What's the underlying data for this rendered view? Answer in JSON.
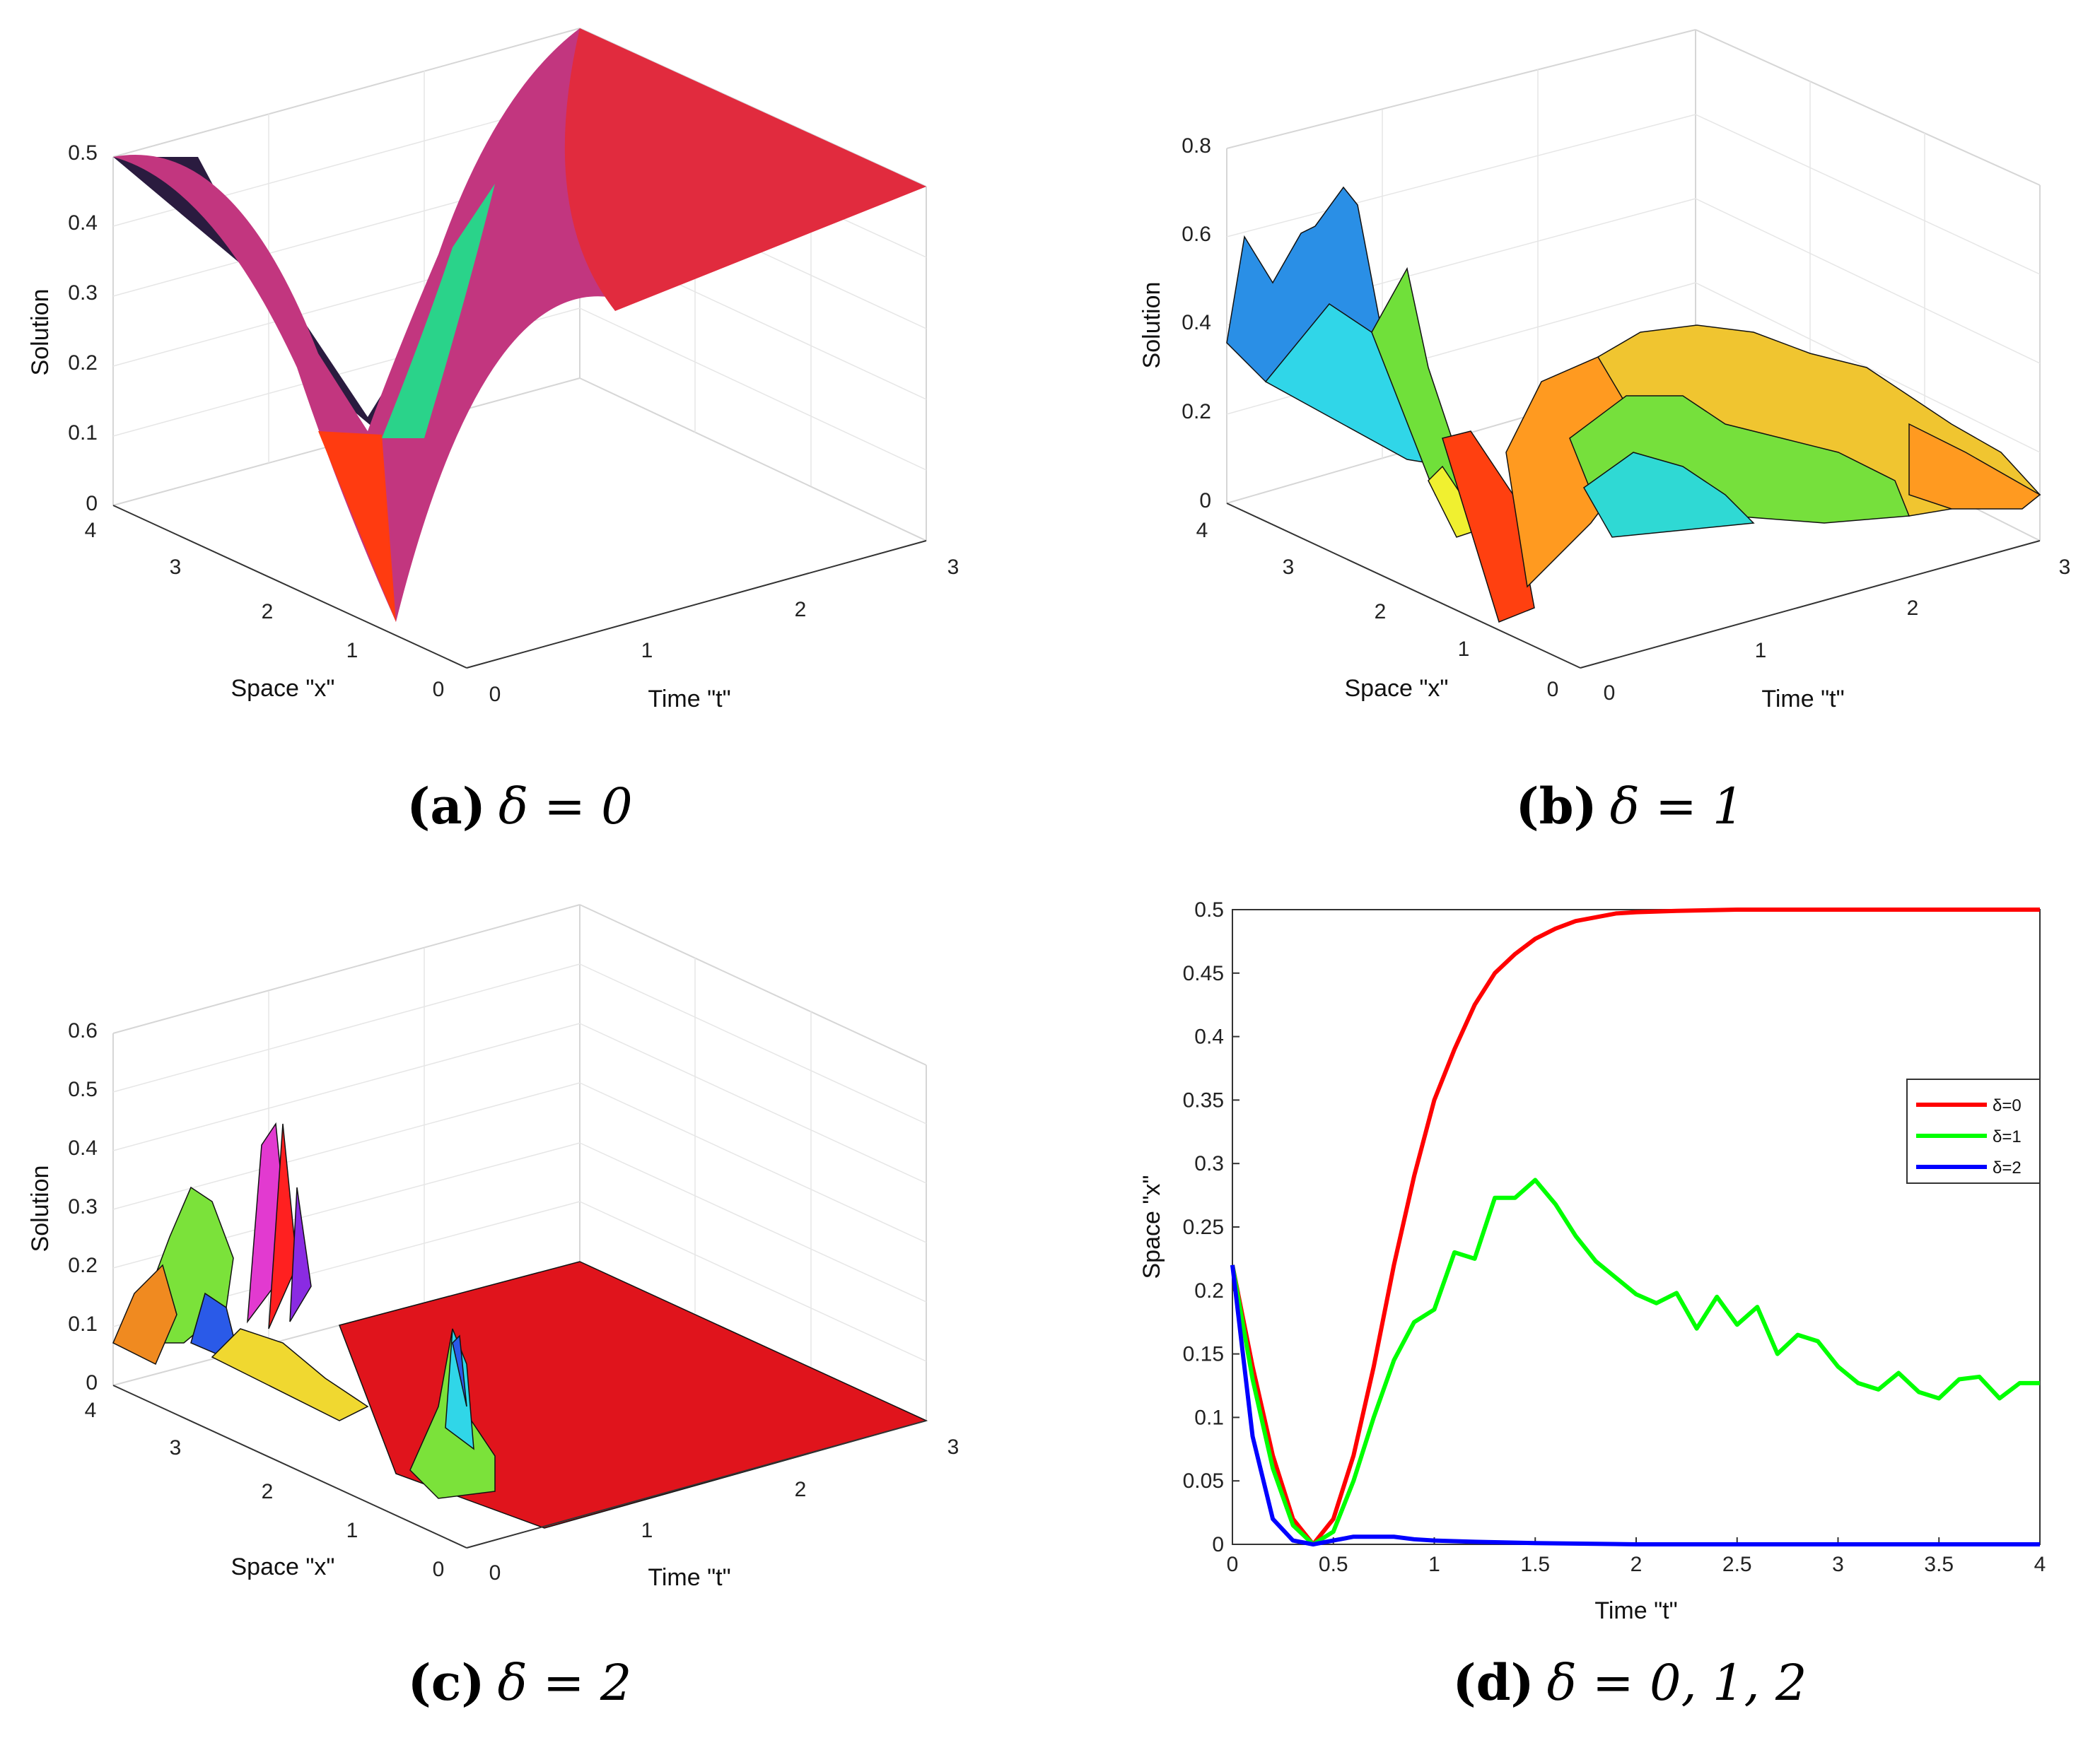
{
  "chart_data": [
    {
      "id": "a",
      "type": "surface",
      "caption_letter": "a",
      "caption_expr": "δ = 0",
      "zlabel": "Solution",
      "xlabel": "Space \"x\"",
      "tlabel": "Time \"t\"",
      "z_ticks": [
        "0",
        "0.1",
        "0.2",
        "0.3",
        "0.4",
        "0.5"
      ],
      "x_ticks": [
        "4",
        "3",
        "2",
        "1",
        "0"
      ],
      "t_ticks": [
        "0",
        "1",
        "2",
        "3"
      ],
      "colormap": "hsv",
      "description_values": {
        "min": 0.0,
        "max": 0.5,
        "trough_x": 1.0,
        "steady_value": 0.5
      }
    },
    {
      "id": "b",
      "type": "surface",
      "caption_letter": "b",
      "caption_expr": "δ = 1",
      "zlabel": "Solution",
      "xlabel": "Space \"x\"",
      "tlabel": "Time \"t\"",
      "z_ticks": [
        "0",
        "0.2",
        "0.4",
        "0.6",
        "0.8"
      ],
      "x_ticks": [
        "4",
        "3",
        "2",
        "1",
        "0"
      ],
      "t_ticks": [
        "0",
        "1",
        "2",
        "3"
      ],
      "colormap": "jet",
      "description_values": {
        "min": 0.0,
        "max": 0.7,
        "trough_x": 1.0
      }
    },
    {
      "id": "c",
      "type": "surface",
      "caption_letter": "c",
      "caption_expr": "δ = 2",
      "zlabel": "Solution",
      "xlabel": "Space \"x\"",
      "tlabel": "Time \"t\"",
      "z_ticks": [
        "0",
        "0.1",
        "0.2",
        "0.3",
        "0.4",
        "0.5",
        "0.6"
      ],
      "x_ticks": [
        "4",
        "3",
        "2",
        "1",
        "0"
      ],
      "t_ticks": [
        "0",
        "1",
        "2",
        "3"
      ],
      "colormap": "hsv",
      "description_values": {
        "min": 0.0,
        "max": 0.45,
        "flat_after_t": 0.6
      }
    },
    {
      "id": "d",
      "type": "line",
      "caption_letter": "d",
      "caption_expr": "δ = 0, 1, 2",
      "xlabel": "Time \"t\"",
      "ylabel": "Space \"x\"",
      "xlim": [
        0,
        4
      ],
      "ylim": [
        0,
        0.5
      ],
      "x_ticks": [
        "0",
        "0.5",
        "1",
        "1.5",
        "2",
        "2.5",
        "3",
        "3.5",
        "4"
      ],
      "y_ticks": [
        "0",
        "0.05",
        "0.1",
        "0.15",
        "0.2",
        "0.25",
        "0.3",
        "0.35",
        "0.4",
        "0.45",
        "0.5"
      ],
      "legend_position": "right",
      "series": [
        {
          "name": "δ=0",
          "color": "#ff0000",
          "points": [
            [
              0,
              0.22
            ],
            [
              0.1,
              0.14
            ],
            [
              0.2,
              0.07
            ],
            [
              0.3,
              0.02
            ],
            [
              0.4,
              0.0
            ],
            [
              0.5,
              0.02
            ],
            [
              0.6,
              0.07
            ],
            [
              0.7,
              0.14
            ],
            [
              0.8,
              0.22
            ],
            [
              0.9,
              0.29
            ],
            [
              1.0,
              0.35
            ],
            [
              1.1,
              0.39
            ],
            [
              1.2,
              0.425
            ],
            [
              1.3,
              0.45
            ],
            [
              1.4,
              0.465
            ],
            [
              1.5,
              0.477
            ],
            [
              1.6,
              0.485
            ],
            [
              1.7,
              0.491
            ],
            [
              1.8,
              0.494
            ],
            [
              1.9,
              0.497
            ],
            [
              2.0,
              0.498
            ],
            [
              2.2,
              0.499
            ],
            [
              2.5,
              0.5
            ],
            [
              3.0,
              0.5
            ],
            [
              3.5,
              0.5
            ],
            [
              4.0,
              0.5
            ]
          ]
        },
        {
          "name": "δ=1",
          "color": "#00ff00",
          "points": [
            [
              0,
              0.22
            ],
            [
              0.1,
              0.13
            ],
            [
              0.2,
              0.06
            ],
            [
              0.3,
              0.015
            ],
            [
              0.4,
              0.0
            ],
            [
              0.5,
              0.01
            ],
            [
              0.6,
              0.05
            ],
            [
              0.7,
              0.1
            ],
            [
              0.8,
              0.145
            ],
            [
              0.9,
              0.175
            ],
            [
              1.0,
              0.185
            ],
            [
              1.1,
              0.23
            ],
            [
              1.2,
              0.225
            ],
            [
              1.3,
              0.273
            ],
            [
              1.4,
              0.273
            ],
            [
              1.5,
              0.287
            ],
            [
              1.6,
              0.268
            ],
            [
              1.7,
              0.243
            ],
            [
              1.8,
              0.223
            ],
            [
              1.9,
              0.21
            ],
            [
              2.0,
              0.197
            ],
            [
              2.1,
              0.19
            ],
            [
              2.2,
              0.198
            ],
            [
              2.3,
              0.17
            ],
            [
              2.4,
              0.195
            ],
            [
              2.5,
              0.173
            ],
            [
              2.6,
              0.187
            ],
            [
              2.7,
              0.15
            ],
            [
              2.8,
              0.165
            ],
            [
              2.9,
              0.16
            ],
            [
              3.0,
              0.14
            ],
            [
              3.1,
              0.127
            ],
            [
              3.2,
              0.122
            ],
            [
              3.3,
              0.135
            ],
            [
              3.4,
              0.12
            ],
            [
              3.5,
              0.115
            ],
            [
              3.6,
              0.13
            ],
            [
              3.7,
              0.132
            ],
            [
              3.8,
              0.115
            ],
            [
              3.9,
              0.127
            ],
            [
              4.0,
              0.127
            ]
          ]
        },
        {
          "name": "δ=2",
          "color": "#0000ff",
          "points": [
            [
              0,
              0.22
            ],
            [
              0.1,
              0.085
            ],
            [
              0.2,
              0.02
            ],
            [
              0.3,
              0.003
            ],
            [
              0.4,
              0.0
            ],
            [
              0.5,
              0.003
            ],
            [
              0.6,
              0.006
            ],
            [
              0.7,
              0.006
            ],
            [
              0.8,
              0.006
            ],
            [
              0.9,
              0.004
            ],
            [
              1.0,
              0.003
            ],
            [
              1.2,
              0.002
            ],
            [
              1.5,
              0.001
            ],
            [
              2.0,
              0.0
            ],
            [
              3.0,
              0.0
            ],
            [
              4.0,
              0.0
            ]
          ]
        }
      ]
    }
  ]
}
